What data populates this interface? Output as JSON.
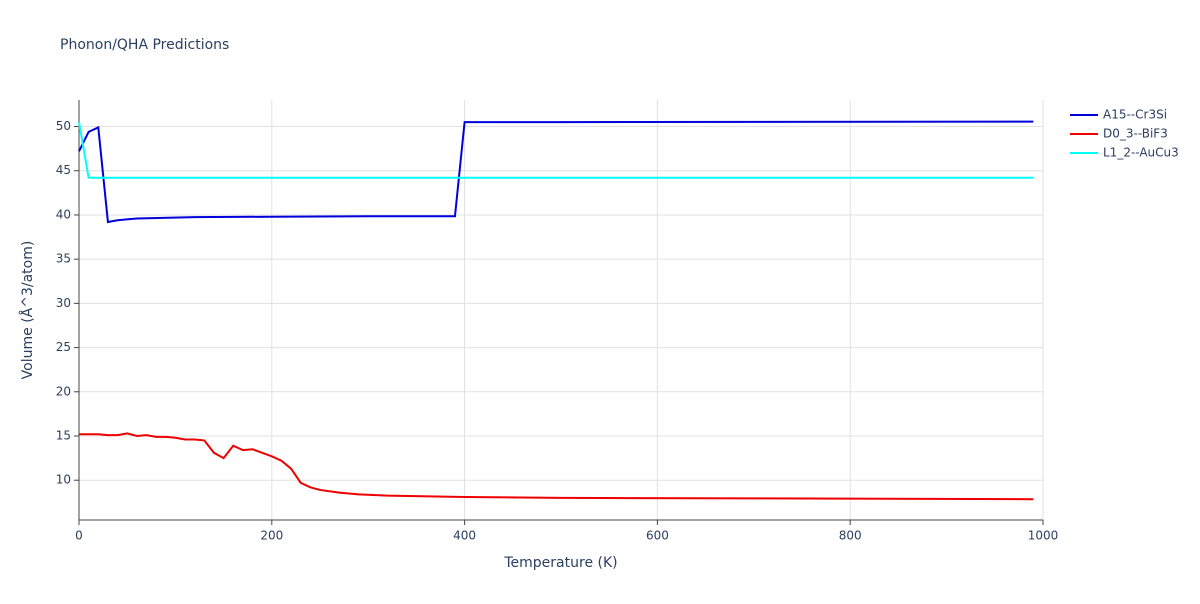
{
  "chart_data": {
    "type": "line",
    "title": "Phonon/QHA Predictions",
    "x_label": "Temperature (K)",
    "y_label": "Volume (Å^3/atom)",
    "xlim": [
      0,
      1000
    ],
    "ylim": [
      5.5,
      53
    ],
    "xticks": [
      0,
      200,
      400,
      600,
      800,
      1000
    ],
    "yticks": [
      10,
      15,
      20,
      25,
      30,
      35,
      40,
      45,
      50
    ],
    "grid": true,
    "legend": "right",
    "series": [
      {
        "name": "A15--Cr3Si",
        "color": "#0000dd",
        "x": [
          0,
          10,
          20,
          30,
          40,
          60,
          120,
          200,
          300,
          390,
          400,
          500,
          700,
          990
        ],
        "values": [
          47.2,
          49.4,
          49.9,
          39.2,
          39.4,
          39.6,
          39.75,
          39.8,
          39.85,
          39.85,
          50.5,
          50.5,
          50.52,
          50.55
        ]
      },
      {
        "name": "D0_3--BiF3",
        "color": "#ee0000",
        "x": [
          0,
          20,
          30,
          40,
          50,
          60,
          70,
          80,
          90,
          100,
          110,
          120,
          130,
          140,
          150,
          160,
          170,
          180,
          190,
          200,
          210,
          220,
          230,
          240,
          250,
          270,
          290,
          320,
          400,
          500,
          700,
          990
        ],
        "values": [
          15.2,
          15.2,
          15.1,
          15.1,
          15.3,
          15.0,
          15.1,
          14.9,
          14.9,
          14.8,
          14.6,
          14.6,
          14.5,
          13.1,
          12.5,
          13.9,
          13.4,
          13.5,
          13.1,
          12.7,
          12.2,
          11.3,
          9.7,
          9.2,
          8.9,
          8.6,
          8.4,
          8.25,
          8.1,
          8.0,
          7.95,
          7.85
        ]
      },
      {
        "name": "L1_2--AuCu3",
        "color": "#00ffff",
        "x": [
          0,
          10,
          990
        ],
        "values": [
          50.5,
          44.2,
          44.2
        ]
      }
    ]
  }
}
